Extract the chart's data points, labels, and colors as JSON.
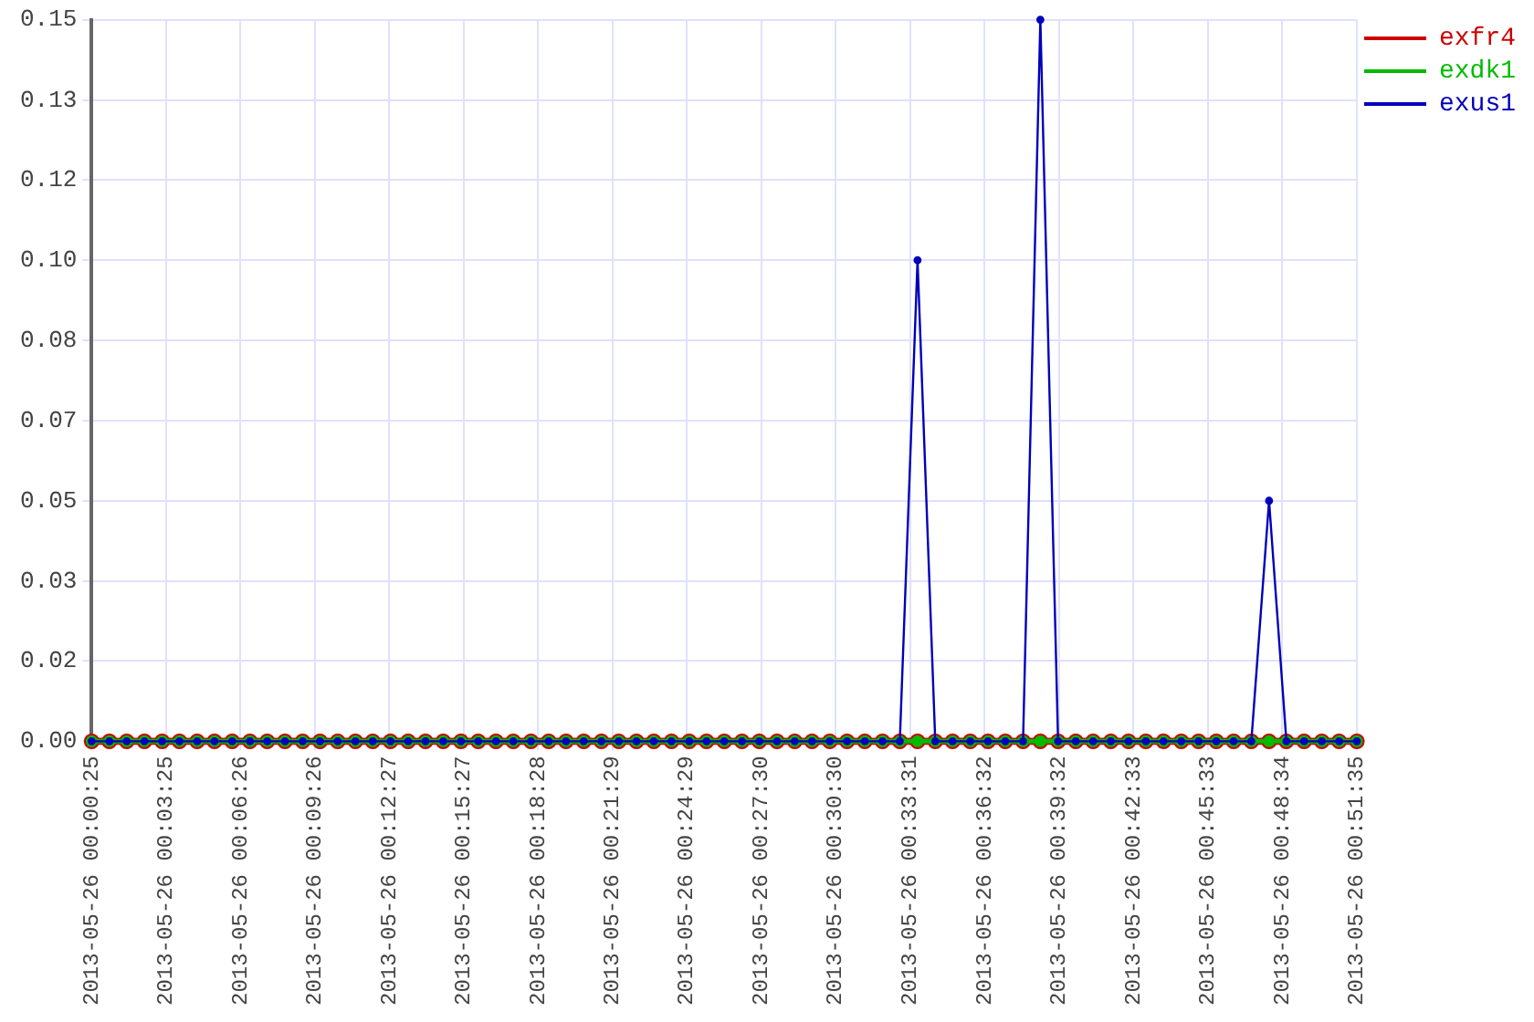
{
  "chart_data": {
    "type": "line",
    "x": [
      "2013-05-26T00:00:25",
      "2013-05-26T00:01:08",
      "2013-05-26T00:01:50",
      "2013-05-26T00:02:33",
      "2013-05-26T00:03:16",
      "2013-05-26T00:03:58",
      "2013-05-26T00:04:41",
      "2013-05-26T00:05:23",
      "2013-05-26T00:06:06",
      "2013-05-26T00:06:49",
      "2013-05-26T00:07:31",
      "2013-05-26T00:08:14",
      "2013-05-26T00:08:57",
      "2013-05-26T00:09:39",
      "2013-05-26T00:10:22",
      "2013-05-26T00:11:05",
      "2013-05-26T00:11:47",
      "2013-05-26T00:12:30",
      "2013-05-26T00:13:13",
      "2013-05-26T00:13:55",
      "2013-05-26T00:14:38",
      "2013-05-26T00:15:21",
      "2013-05-26T00:16:03",
      "2013-05-26T00:16:46",
      "2013-05-26T00:17:28",
      "2013-05-26T00:18:11",
      "2013-05-26T00:18:54",
      "2013-05-26T00:19:36",
      "2013-05-26T00:20:19",
      "2013-05-26T00:21:02",
      "2013-05-26T00:21:44",
      "2013-05-26T00:22:27",
      "2013-05-26T00:23:09",
      "2013-05-26T00:23:52",
      "2013-05-26T00:24:35",
      "2013-05-26T00:25:17",
      "2013-05-26T00:26:00",
      "2013-05-26T00:26:43",
      "2013-05-26T00:27:25",
      "2013-05-26T00:28:08",
      "2013-05-26T00:28:51",
      "2013-05-26T00:29:33",
      "2013-05-26T00:30:16",
      "2013-05-26T00:30:58",
      "2013-05-26T00:31:41",
      "2013-05-26T00:32:24",
      "2013-05-26T00:33:06",
      "2013-05-26T00:33:49",
      "2013-05-26T00:34:32",
      "2013-05-26T00:35:14",
      "2013-05-26T00:35:57",
      "2013-05-26T00:36:40",
      "2013-05-26T00:37:22",
      "2013-05-26T00:38:05",
      "2013-05-26T00:38:47",
      "2013-05-26T00:39:30",
      "2013-05-26T00:40:13",
      "2013-05-26T00:40:55",
      "2013-05-26T00:41:38",
      "2013-05-26T00:42:21",
      "2013-05-26T00:43:03",
      "2013-05-26T00:43:46",
      "2013-05-26T00:44:29",
      "2013-05-26T00:45:11",
      "2013-05-26T00:45:54",
      "2013-05-26T00:46:36",
      "2013-05-26T00:47:19",
      "2013-05-26T00:48:02",
      "2013-05-26T00:48:44",
      "2013-05-26T00:49:27",
      "2013-05-26T00:50:10",
      "2013-05-26T00:50:52",
      "2013-05-26T00:51:35"
    ],
    "series": [
      {
        "name": "exfr4",
        "color": "#cc0000",
        "values": [
          0,
          0,
          0,
          0,
          0,
          0,
          0,
          0,
          0,
          0,
          0,
          0,
          0,
          0,
          0,
          0,
          0,
          0,
          0,
          0,
          0,
          0,
          0,
          0,
          0,
          0,
          0,
          0,
          0,
          0,
          0,
          0,
          0,
          0,
          0,
          0,
          0,
          0,
          0,
          0,
          0,
          0,
          0,
          0,
          0,
          0,
          0,
          0,
          0,
          0,
          0,
          0,
          0,
          0,
          0,
          0,
          0,
          0,
          0,
          0,
          0,
          0,
          0,
          0,
          0,
          0,
          0,
          0,
          0,
          0,
          0,
          0,
          0
        ]
      },
      {
        "name": "exdk1",
        "color": "#00bb00",
        "values": [
          0,
          0,
          0,
          0,
          0,
          0,
          0,
          0,
          0,
          0,
          0,
          0,
          0,
          0,
          0,
          0,
          0,
          0,
          0,
          0,
          0,
          0,
          0,
          0,
          0,
          0,
          0,
          0,
          0,
          0,
          0,
          0,
          0,
          0,
          0,
          0,
          0,
          0,
          0,
          0,
          0,
          0,
          0,
          0,
          0,
          0,
          0,
          0,
          0,
          0,
          0,
          0,
          0,
          0,
          0,
          0,
          0,
          0,
          0,
          0,
          0,
          0,
          0,
          0,
          0,
          0,
          0,
          0,
          0,
          0,
          0,
          0,
          0
        ]
      },
      {
        "name": "exus1",
        "color": "#0000bb",
        "values": [
          0,
          0,
          0,
          0,
          0,
          0,
          0,
          0,
          0,
          0,
          0,
          0,
          0,
          0,
          0,
          0,
          0,
          0,
          0,
          0,
          0,
          0,
          0,
          0,
          0,
          0,
          0,
          0,
          0,
          0,
          0,
          0,
          0,
          0,
          0,
          0,
          0,
          0,
          0,
          0,
          0,
          0,
          0,
          0,
          0,
          0,
          0,
          0.1,
          0,
          0,
          0,
          0,
          0,
          0,
          0.15,
          0,
          0,
          0,
          0,
          0,
          0,
          0,
          0,
          0,
          0,
          0,
          0,
          0.05,
          0,
          0,
          0,
          0,
          0
        ]
      }
    ],
    "xlim": [
      "2013-05-26T00:00:25",
      "2013-05-26T00:51:35"
    ],
    "xticks": [
      {
        "value": "2013-05-26T00:00:25",
        "label": "2013-05-26 00:00:25"
      },
      {
        "value": "2013-05-26T00:03:25",
        "label": "2013-05-26 00:03:25"
      },
      {
        "value": "2013-05-26T00:06:26",
        "label": "2013-05-26 00:06:26"
      },
      {
        "value": "2013-05-26T00:09:26",
        "label": "2013-05-26 00:09:26"
      },
      {
        "value": "2013-05-26T00:12:27",
        "label": "2013-05-26 00:12:27"
      },
      {
        "value": "2013-05-26T00:15:27",
        "label": "2013-05-26 00:15:27"
      },
      {
        "value": "2013-05-26T00:18:28",
        "label": "2013-05-26 00:18:28"
      },
      {
        "value": "2013-05-26T00:21:29",
        "label": "2013-05-26 00:21:29"
      },
      {
        "value": "2013-05-26T00:24:29",
        "label": "2013-05-26 00:24:29"
      },
      {
        "value": "2013-05-26T00:27:30",
        "label": "2013-05-26 00:27:30"
      },
      {
        "value": "2013-05-26T00:30:30",
        "label": "2013-05-26 00:30:30"
      },
      {
        "value": "2013-05-26T00:33:31",
        "label": "2013-05-26 00:33:31"
      },
      {
        "value": "2013-05-26T00:36:32",
        "label": "2013-05-26 00:36:32"
      },
      {
        "value": "2013-05-26T00:39:32",
        "label": "2013-05-26 00:39:32"
      },
      {
        "value": "2013-05-26T00:42:33",
        "label": "2013-05-26 00:42:33"
      },
      {
        "value": "2013-05-26T00:45:33",
        "label": "2013-05-26 00:45:33"
      },
      {
        "value": "2013-05-26T00:48:34",
        "label": "2013-05-26 00:48:34"
      },
      {
        "value": "2013-05-26T00:51:35",
        "label": "2013-05-26 00:51:35"
      }
    ],
    "ylim": [
      0,
      0.15
    ],
    "yticks": [
      {
        "value": 0,
        "label": "0.00"
      },
      {
        "value": 0.0167,
        "label": "0.02"
      },
      {
        "value": 0.0333,
        "label": "0.03"
      },
      {
        "value": 0.05,
        "label": "0.05"
      },
      {
        "value": 0.0667,
        "label": "0.07"
      },
      {
        "value": 0.0833,
        "label": "0.08"
      },
      {
        "value": 0.1,
        "label": "0.10"
      },
      {
        "value": 0.1167,
        "label": "0.12"
      },
      {
        "value": 0.1333,
        "label": "0.13"
      },
      {
        "value": 0.15,
        "label": "0.15"
      }
    ],
    "grid": true,
    "legend": "top right",
    "marker": "circle",
    "line_style": "solid"
  }
}
